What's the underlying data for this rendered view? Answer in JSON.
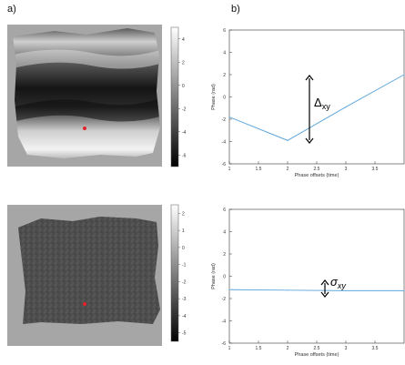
{
  "panel_labels": {
    "a": "a)",
    "b": "b)"
  },
  "colors": {
    "map_background": "#a6a6a6",
    "line": "#5fa7dc",
    "marker": "#e8202a",
    "axis": "#333333"
  },
  "maps": [
    {
      "colorbar_ticks": [
        "4",
        "2",
        "0",
        "-2",
        "-4",
        "-6"
      ],
      "colormap": "gray",
      "marker": "reference-pixel",
      "appearance": "horizontal light-dark phase bands"
    },
    {
      "colorbar_ticks": [
        "2",
        "1",
        "0",
        "-1",
        "-2",
        "-3",
        "-4",
        "-5"
      ],
      "colormap": "gray",
      "marker": "reference-pixel",
      "appearance": "uniform gray phase"
    }
  ],
  "chart_data": [
    {
      "type": "line",
      "xlabel": "Phase offsets (time)",
      "ylabel": "Phase (rad)",
      "xlim": [
        1,
        4
      ],
      "ylim": [
        -6,
        6
      ],
      "xticks": [
        "1",
        "1.5",
        "2",
        "2.5",
        "3",
        "3.5"
      ],
      "yticks": [
        "6",
        "4",
        "2",
        "0",
        "-2",
        "-4",
        "-6"
      ],
      "x": [
        1,
        2,
        3,
        4
      ],
      "y": [
        -1.8,
        -3.9,
        -0.9,
        2.0
      ],
      "annotation": {
        "text": "Δ",
        "subscript": "xy"
      }
    },
    {
      "type": "line",
      "xlabel": "Phase offsets (time)",
      "ylabel": "Phase (rad)",
      "xlim": [
        1,
        4
      ],
      "ylim": [
        -6,
        6
      ],
      "xticks": [
        "1",
        "1.5",
        "2",
        "2.5",
        "3",
        "3.5"
      ],
      "yticks": [
        "6",
        "4",
        "2",
        "0",
        "-2",
        "-4",
        "-6"
      ],
      "x": [
        1,
        2,
        3,
        4
      ],
      "y": [
        -1.2,
        -1.25,
        -1.3,
        -1.3
      ],
      "annotation": {
        "text": "σ",
        "subscript": "xy"
      }
    }
  ]
}
